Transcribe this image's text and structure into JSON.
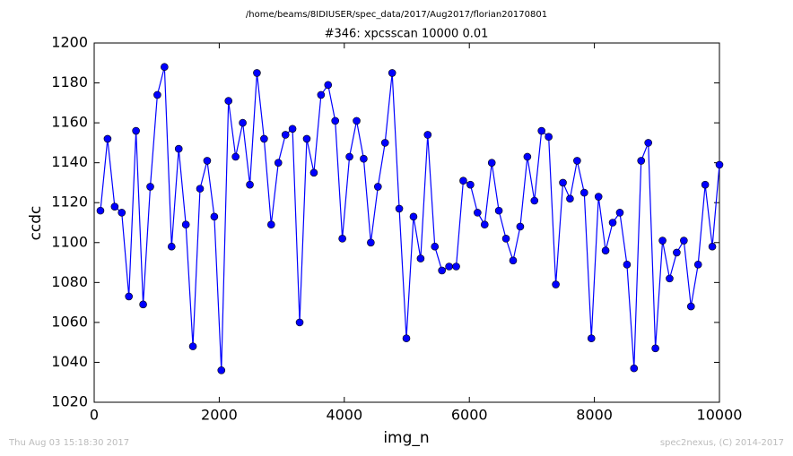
{
  "chart_data": {
    "type": "line",
    "title": "/home/beams/8IDIUSER/spec_data/2017/Aug2017/florian20170801",
    "subtitle": "#346: xpcsscan 10000 0.01",
    "x_label": "img_n",
    "y_label": "ccdc",
    "footer_left": "Thu Aug 03 15:18:30 2017",
    "footer_right": "spec2nexus, (C) 2014-2017",
    "color": "#0000ff",
    "x": [
      100,
      214,
      328,
      441,
      555,
      669,
      783,
      897,
      1010,
      1124,
      1238,
      1352,
      1466,
      1579,
      1693,
      1807,
      1921,
      2034,
      2148,
      2262,
      2376,
      2490,
      2603,
      2717,
      2831,
      2945,
      3059,
      3172,
      3286,
      3400,
      3514,
      3628,
      3741,
      3855,
      3969,
      4083,
      4197,
      4310,
      4424,
      4538,
      4652,
      4766,
      4879,
      4993,
      5107,
      5221,
      5334,
      5448,
      5562,
      5676,
      5790,
      5903,
      6017,
      6131,
      6245,
      6359,
      6472,
      6586,
      6700,
      6814,
      6928,
      7041,
      7155,
      7269,
      7383,
      7497,
      7610,
      7724,
      7838,
      7952,
      8066,
      8179,
      8293,
      8407,
      8521,
      8634,
      8748,
      8862,
      8976,
      9090,
      9203,
      9317,
      9431,
      9545,
      9659,
      9772,
      9886,
      10000
    ],
    "values": [
      1116,
      1152,
      1118,
      1115,
      1073,
      1156,
      1069,
      1128,
      1174,
      1188,
      1098,
      1147,
      1109,
      1048,
      1127,
      1141,
      1113,
      1036,
      1171,
      1143,
      1160,
      1129,
      1185,
      1152,
      1109,
      1140,
      1154,
      1157,
      1060,
      1152,
      1135,
      1174,
      1179,
      1161,
      1102,
      1143,
      1161,
      1142,
      1100,
      1128,
      1150,
      1185,
      1117,
      1052,
      1113,
      1092,
      1154,
      1098,
      1086,
      1088,
      1088,
      1131,
      1129,
      1115,
      1109,
      1140,
      1116,
      1102,
      1091,
      1108,
      1143,
      1121,
      1156,
      1153,
      1079,
      1130,
      1122,
      1141,
      1125,
      1052,
      1123,
      1096,
      1110,
      1115,
      1089,
      1037,
      1141,
      1150,
      1047,
      1101,
      1082,
      1095,
      1101,
      1068,
      1089,
      1129,
      1098,
      1139
    ],
    "xlim": [
      0,
      10000
    ],
    "xticks": [
      0,
      2000,
      4000,
      6000,
      8000,
      10000
    ],
    "ylim": [
      1020,
      1200
    ],
    "yticks": [
      1020,
      1040,
      1060,
      1080,
      1100,
      1120,
      1140,
      1160,
      1180,
      1200
    ],
    "grid": false
  }
}
